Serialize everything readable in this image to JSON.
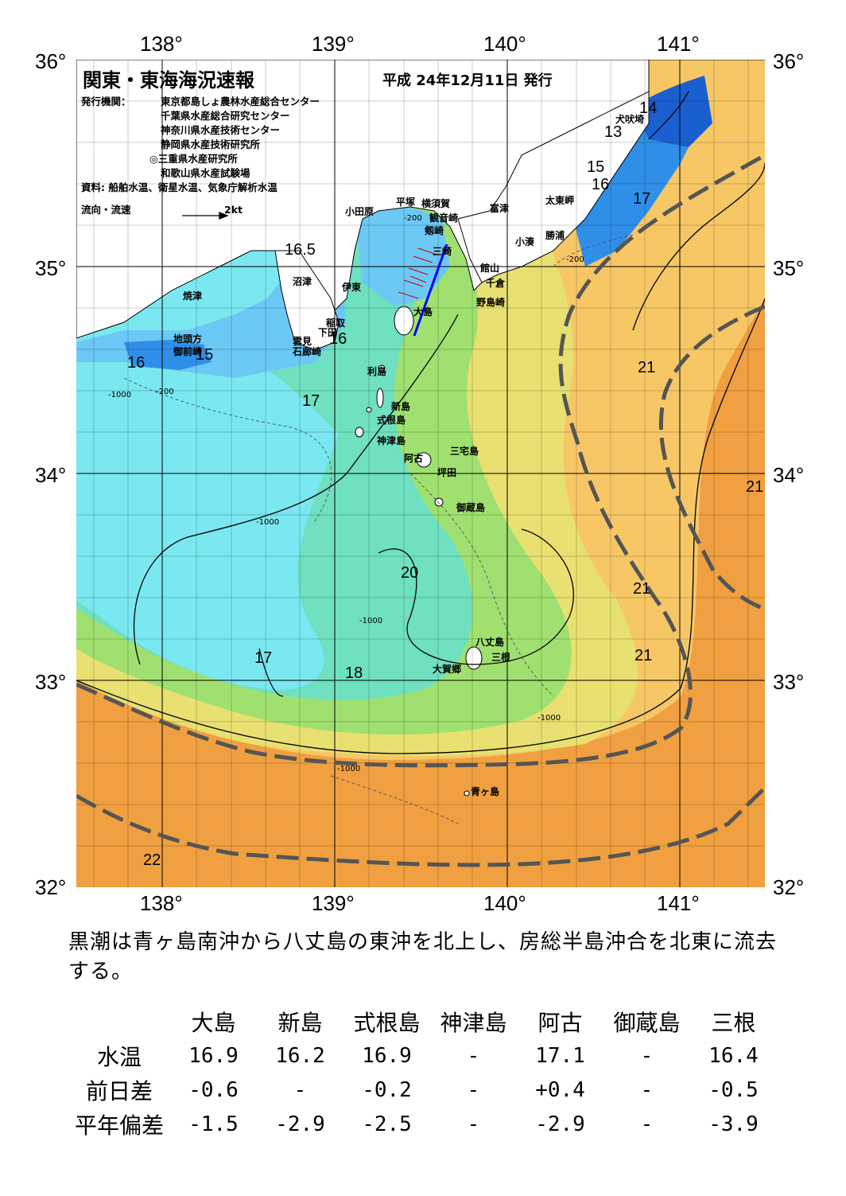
{
  "map": {
    "title": "関東・東海海況速報",
    "date": "平成 24年12月11日 発行",
    "publisher_label": "発行機関：",
    "publishers": [
      "東京都島しょ農林水産総合センター",
      "千葉県水産総合研究センター",
      "神奈川県水産技術センター",
      "静岡県水産技術研究所",
      "◎三重県水産研究所",
      "和歌山県水産試験場"
    ],
    "source": "資料: 船舶水温、衛星水温、気象庁解析水温",
    "current_legend": "流向・流速",
    "current_scale": "2kt",
    "lon_labels": [
      "138°",
      "139°",
      "140°",
      "141°"
    ],
    "lat_labels": [
      "36°",
      "35°",
      "34°",
      "33°",
      "32°"
    ],
    "place_labels": [
      "犬吠埼",
      "太東岬",
      "勝浦",
      "小湊",
      "富津",
      "館山",
      "千倉",
      "野島崎",
      "横須賀",
      "観音崎",
      "剱崎",
      "平塚",
      "小田原",
      "三崎",
      "沼津",
      "伊東",
      "焼津",
      "稲取",
      "下田",
      "雲見",
      "石廊崎",
      "地頭方",
      "御前崎",
      "大島",
      "利島",
      "新島",
      "式根島",
      "神津島",
      "三宅島",
      "阿古",
      "坪田",
      "御蔵島",
      "八丈島",
      "三根",
      "大賀郷",
      "青ヶ島"
    ],
    "isotherm_labels": [
      "14",
      "13",
      "15",
      "16",
      "17",
      "16.5",
      "16",
      "15",
      "16",
      "17",
      "21",
      "21",
      "20",
      "21",
      "21",
      "17",
      "18",
      "22"
    ],
    "depth_labels": [
      "-200",
      "-1000"
    ],
    "colors": {
      "warm_deep": "#f0a040",
      "warm": "#f7c766",
      "mild": "#e8e070",
      "green": "#a0e070",
      "teal": "#6fe0c0",
      "cyan": "#7ae8f0",
      "blue_light": "#6cc8f4",
      "blue": "#2f8fe8",
      "blue_deep": "#1a5fd0",
      "kuroshio_axis": "#555555"
    }
  },
  "summary": "黒潮は青ヶ島南沖から八丈島の東沖を北上し、房総半島沖合を北東に流去する。",
  "table": {
    "columns": [
      "大島",
      "新島",
      "式根島",
      "神津島",
      "阿古",
      "御蔵島",
      "三根"
    ],
    "rows": [
      {
        "label": "水温",
        "values": [
          "16.9",
          "16.2",
          "16.9",
          "-",
          "17.1",
          "-",
          "16.4"
        ]
      },
      {
        "label": "前日差",
        "values": [
          "-0.6",
          "-",
          "-0.2",
          "-",
          "+0.4",
          "-",
          "-0.5"
        ]
      },
      {
        "label": "平年偏差",
        "values": [
          "-1.5",
          "-2.9",
          "-2.5",
          "-",
          "-2.9",
          "-",
          "-3.9"
        ]
      }
    ]
  }
}
